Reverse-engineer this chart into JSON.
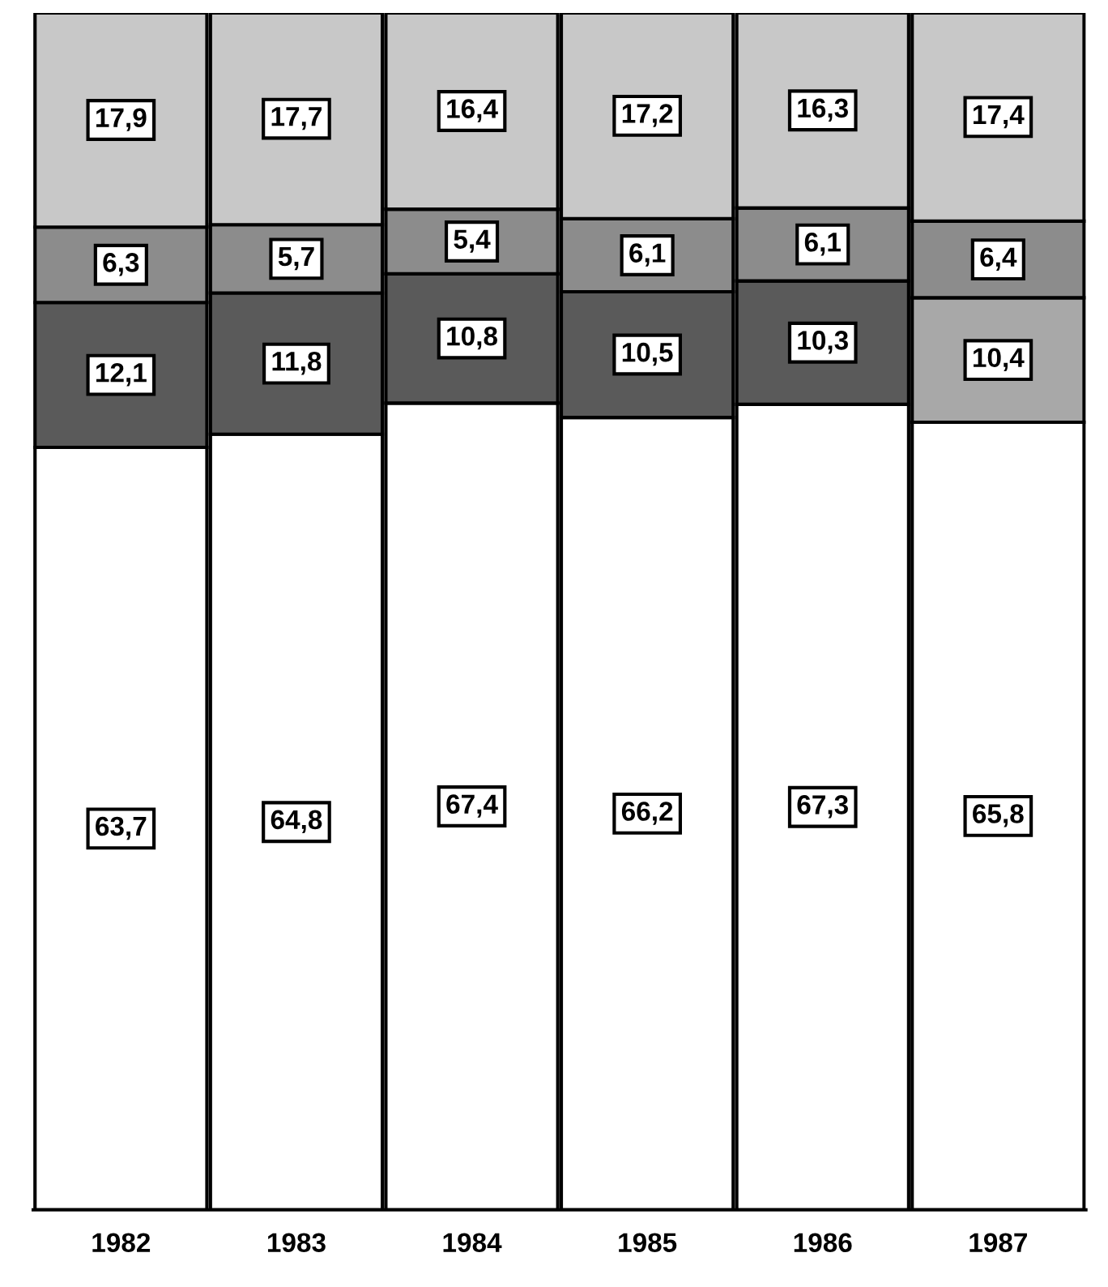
{
  "chart_data": {
    "type": "bar",
    "stacked": true,
    "categories": [
      "1982",
      "1983",
      "1984",
      "1985",
      "1986",
      "1987"
    ],
    "series": [
      {
        "color": "#ffffff",
        "values": [
          63.7,
          64.8,
          67.4,
          66.2,
          67.3,
          65.8
        ],
        "value_labels": [
          "63,7",
          "64,8",
          "67,4",
          "66,2",
          "67,3",
          "65,8"
        ]
      },
      {
        "color": "#5a5a5a",
        "colors": [
          null,
          null,
          null,
          null,
          null,
          "#a8a8a8"
        ],
        "values": [
          12.1,
          11.8,
          10.8,
          10.5,
          10.3,
          10.4
        ],
        "value_labels": [
          "12,1",
          "11,8",
          "10,8",
          "10,5",
          "10,3",
          "10,4"
        ]
      },
      {
        "color": "#8c8c8c",
        "values": [
          6.3,
          5.7,
          5.4,
          6.1,
          6.1,
          6.4
        ],
        "value_labels": [
          "6,3",
          "5,7",
          "5,4",
          "6,1",
          "6,1",
          "6,4"
        ]
      },
      {
        "color": "#c8c8c8",
        "values": [
          17.9,
          17.7,
          16.4,
          17.2,
          16.3,
          17.4
        ],
        "value_labels": [
          "17,9",
          "17,7",
          "16,4",
          "17,2",
          "16,3",
          "17,4"
        ]
      }
    ]
  }
}
